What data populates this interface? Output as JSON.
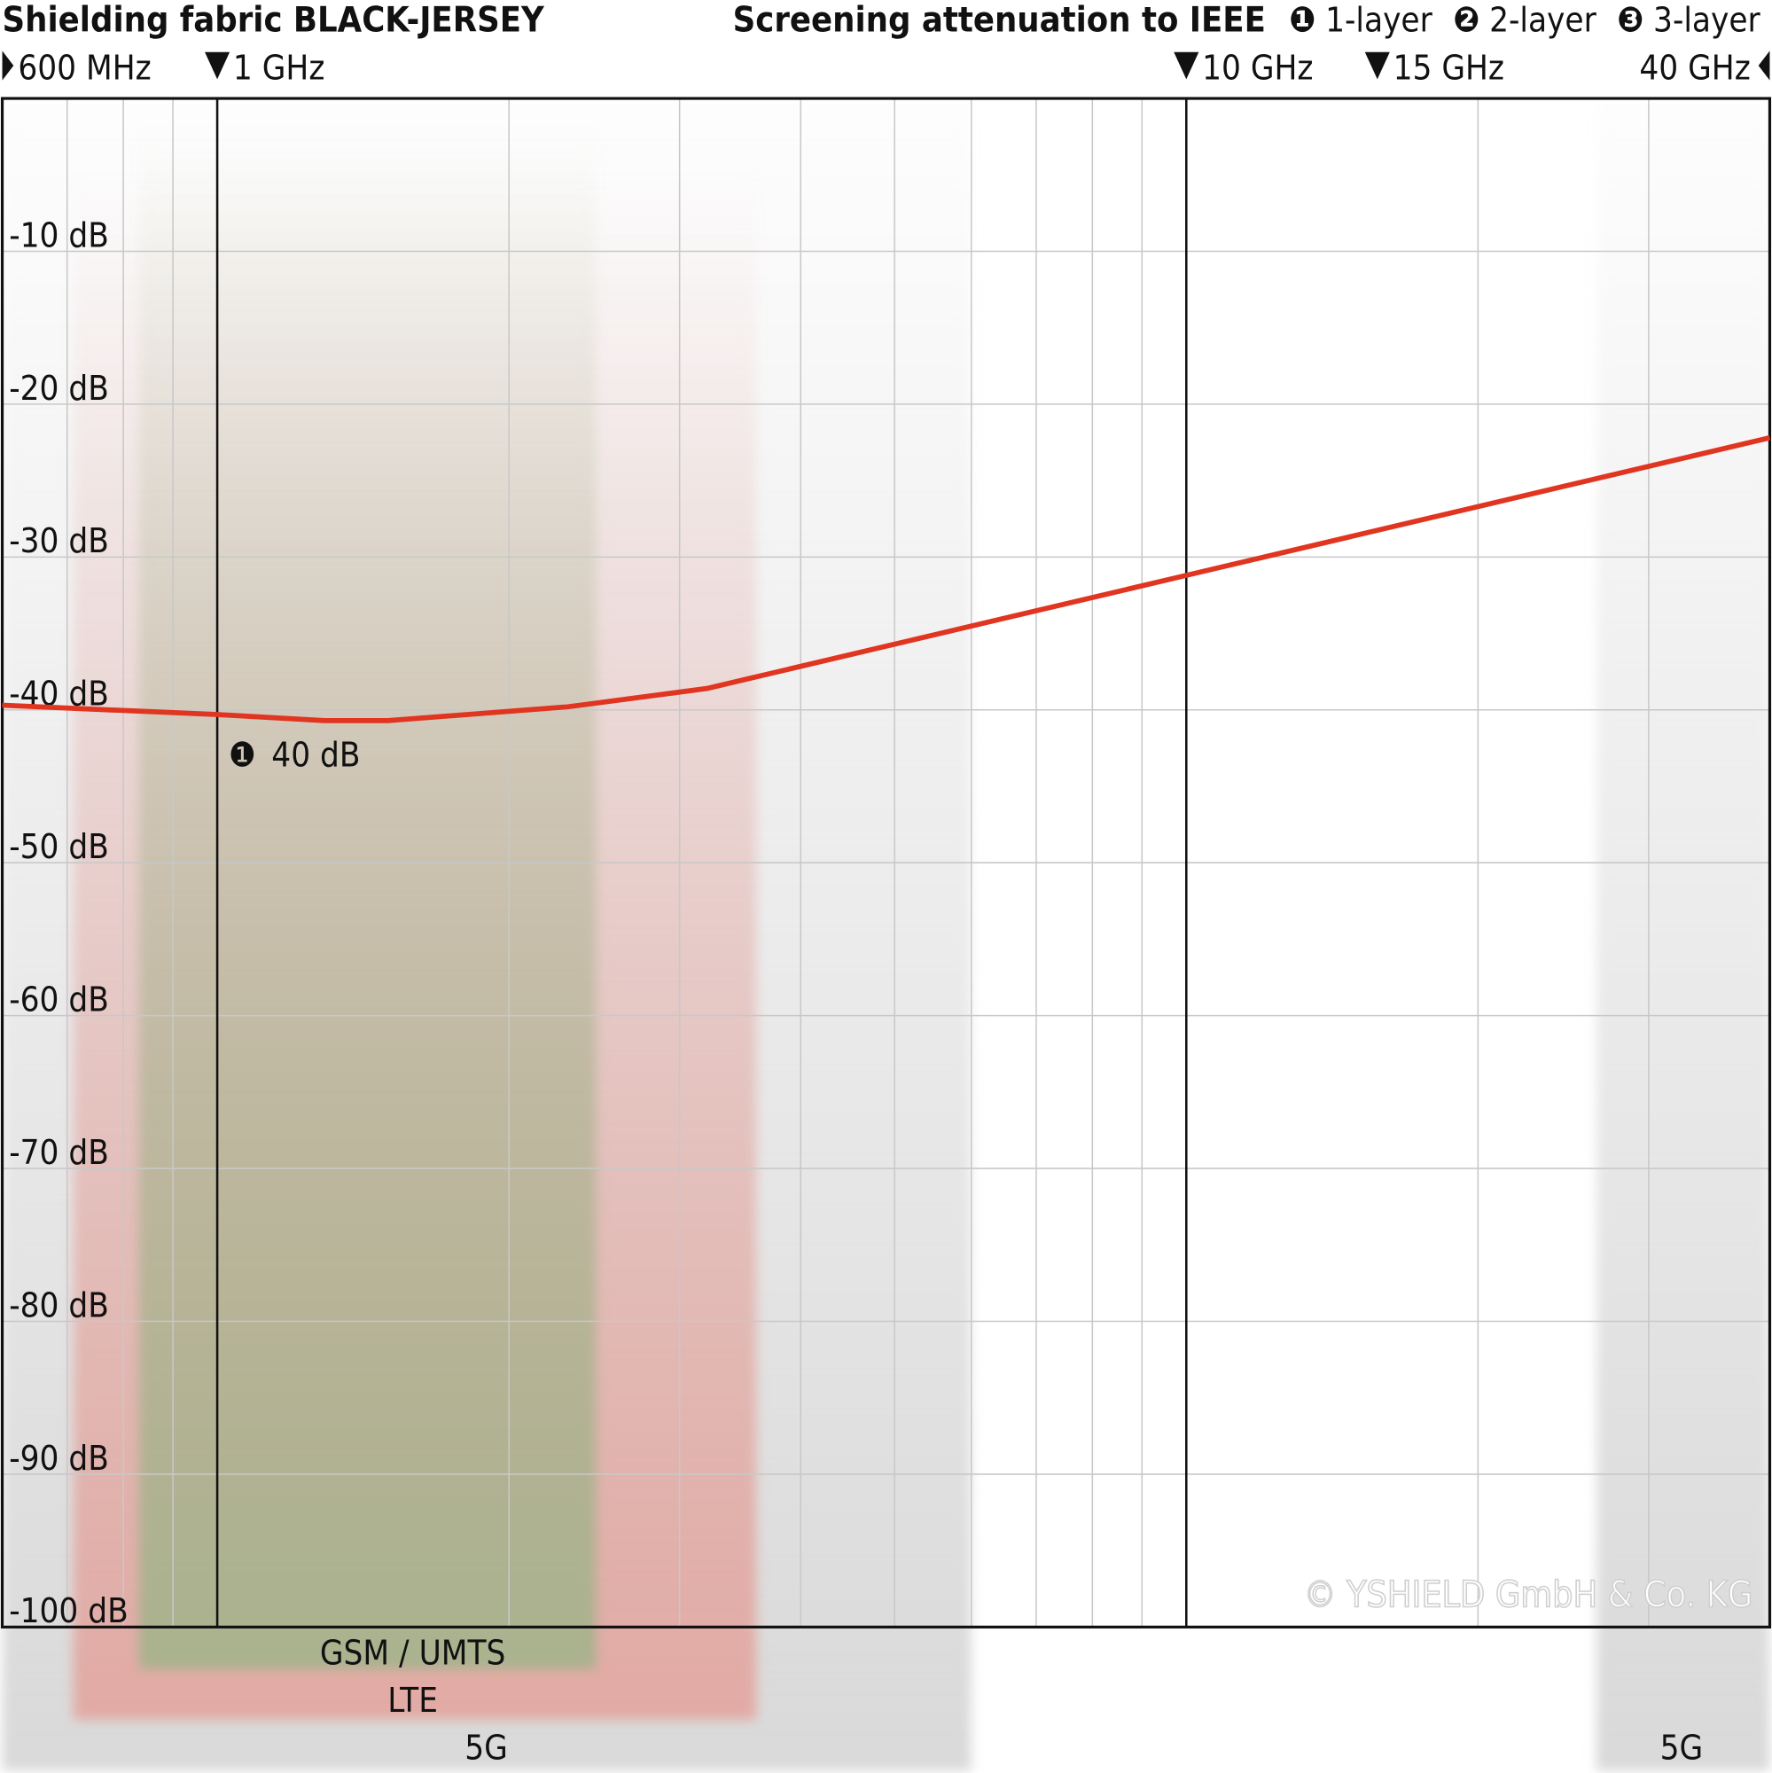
{
  "chart_data": {
    "type": "line",
    "title": "Shielding fabric BLACK-JERSEY",
    "subtitle": "Screening attenuation to IEEE",
    "legend": [
      {
        "marker": "❶",
        "label": "1-layer"
      },
      {
        "marker": "❷",
        "label": "2-layer"
      },
      {
        "marker": "❸",
        "label": "3-layer"
      }
    ],
    "x_scale": "log",
    "x_unit": "GHz",
    "xlim": [
      0.6,
      40
    ],
    "x_markers": [
      {
        "value": 0.6,
        "label": "600 MHz"
      },
      {
        "value": 1,
        "label": "1 GHz"
      },
      {
        "value": 10,
        "label": "10 GHz"
      },
      {
        "value": 15,
        "label": "15 GHz"
      },
      {
        "value": 40,
        "label": "40 GHz"
      }
    ],
    "x_gridlines": [
      0.7,
      0.8,
      0.9,
      1,
      2,
      3,
      4,
      5,
      6,
      7,
      8,
      9,
      10,
      20,
      30
    ],
    "ylim": [
      -100,
      0
    ],
    "y_ticks": [
      {
        "value": -10,
        "label": "-10 dB"
      },
      {
        "value": -20,
        "label": "-20 dB"
      },
      {
        "value": -30,
        "label": "-30 dB"
      },
      {
        "value": -40,
        "label": "-40 dB"
      },
      {
        "value": -50,
        "label": "-50 dB"
      },
      {
        "value": -60,
        "label": "-60 dB"
      },
      {
        "value": -70,
        "label": "-70 dB"
      },
      {
        "value": -80,
        "label": "-80 dB"
      },
      {
        "value": -90,
        "label": "-90 dB"
      },
      {
        "value": -100,
        "label": "-100 dB"
      }
    ],
    "grid": true,
    "series": [
      {
        "color": "#e03520",
        "x": [
          0.6,
          1.0,
          1.29,
          1.5,
          2.3,
          3.2,
          10,
          40
        ],
        "y": [
          -39.7,
          -40.3,
          -40.7,
          -40.7,
          -39.8,
          -38.6,
          -31.2,
          -22.2
        ]
      }
    ],
    "annotation": {
      "marker": "❶",
      "label": "40 dB",
      "x": 1,
      "y": -40.3
    },
    "bands": [
      {
        "label": "5G",
        "from": 0.6,
        "to": 6,
        "color": "#d9d9d9"
      },
      {
        "label": "LTE",
        "from": 0.71,
        "to": 3.6,
        "color": "#e2aaa4"
      },
      {
        "label": "GSM / UMTS",
        "from": 0.83,
        "to": 2.46,
        "color": "#a9b28e"
      },
      {
        "label": "5G",
        "from": 26.5,
        "to": 40,
        "color": "#d9d9d9"
      }
    ],
    "copyright": "© YSHIELD GmbH & Co. KG"
  }
}
